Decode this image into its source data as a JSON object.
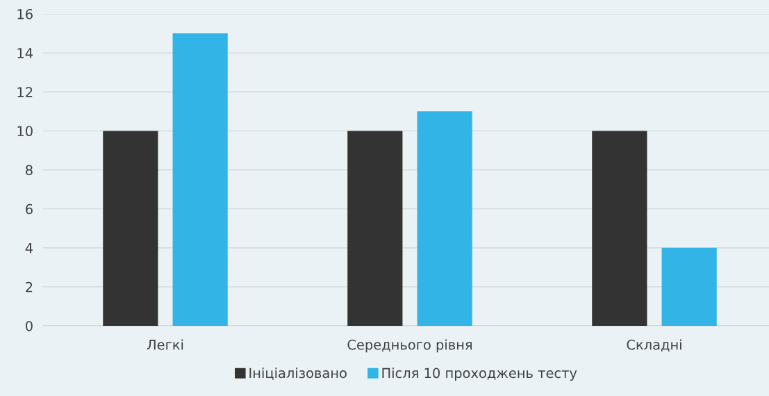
{
  "chart_data": {
    "type": "bar",
    "categories": [
      "Легкі",
      "Середнього рівня",
      "Складні"
    ],
    "series": [
      {
        "name": "Ініціалізовано",
        "color": "#333333",
        "values": [
          10,
          10,
          10
        ]
      },
      {
        "name": "Після 10 проходжень тесту",
        "color": "#32b5e6",
        "values": [
          15,
          11,
          4
        ]
      }
    ],
    "ylim": [
      0,
      16
    ],
    "yticks": [
      0,
      2,
      4,
      6,
      8,
      10,
      12,
      14,
      16
    ],
    "grid": "y",
    "legend": "bottom"
  }
}
